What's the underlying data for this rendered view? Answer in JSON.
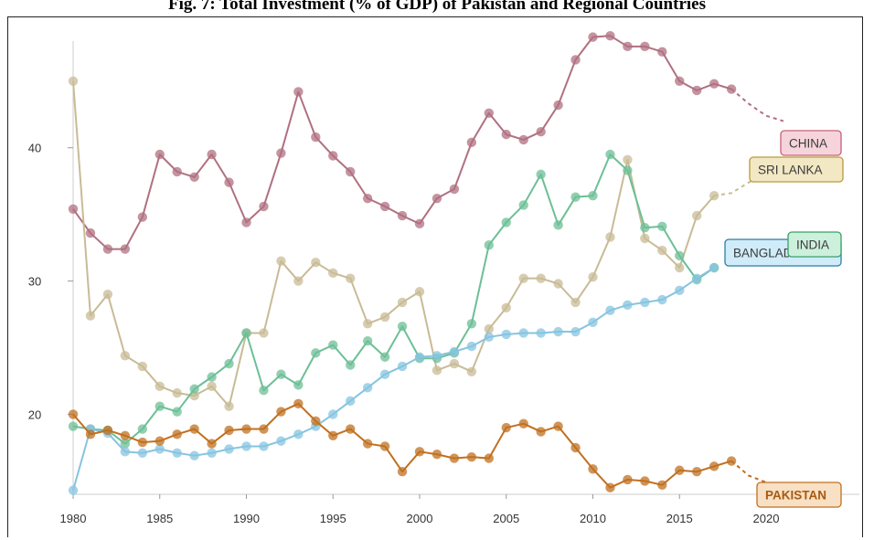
{
  "figure": {
    "title": "Fig. 7: Total Investment (% of GDP) of Pakistan and Regional Countries"
  },
  "chart_data": {
    "type": "line",
    "title": "Fig. 7: Total Investment (% of GDP) of Pakistan and Regional Countries",
    "xlabel": "",
    "ylabel": "",
    "xlim": [
      1980,
      2023
    ],
    "ylim": [
      14,
      48
    ],
    "x_ticks": [
      1980,
      1985,
      1990,
      1995,
      2000,
      2005,
      2010,
      2015,
      2020
    ],
    "y_ticks": [
      20,
      30,
      40
    ],
    "grid": false,
    "x": [
      1980,
      1981,
      1982,
      1983,
      1984,
      1985,
      1986,
      1987,
      1988,
      1989,
      1990,
      1991,
      1992,
      1993,
      1994,
      1995,
      1996,
      1997,
      1998,
      1999,
      2000,
      2001,
      2002,
      2003,
      2004,
      2005,
      2006,
      2007,
      2008,
      2009,
      2010,
      2011,
      2012,
      2013,
      2014,
      2015,
      2016,
      2017,
      2018,
      2019,
      2020,
      2021
    ],
    "series": [
      {
        "name": "CHINA",
        "color": "#b07080",
        "label_bg": "#f6d4dc",
        "label_border": "#c8607a",
        "values": [
          35.4,
          33.6,
          32.4,
          32.4,
          34.8,
          39.5,
          38.2,
          37.8,
          39.5,
          37.4,
          34.4,
          35.6,
          39.6,
          44.2,
          40.8,
          39.4,
          38.2,
          36.2,
          35.6,
          34.9,
          34.3,
          36.2,
          36.9,
          40.4,
          42.6,
          41.0,
          40.6,
          41.2,
          43.2,
          46.6,
          48.3,
          48.4,
          47.6,
          47.6,
          47.2,
          45.0,
          44.3,
          44.8,
          44.4,
          null,
          null,
          null
        ],
        "dashed_tail": [
          [
            2018,
            44.4
          ],
          [
            2019,
            43.3
          ],
          [
            2020,
            42.4
          ],
          [
            2021,
            42.0
          ]
        ],
        "end_label": "CHINA"
      },
      {
        "name": "SRI LANKA",
        "color": "#c8bb96",
        "label_bg": "#f3e8c4",
        "label_border": "#b89a3a",
        "values": [
          45.0,
          27.4,
          29.0,
          24.4,
          23.6,
          22.1,
          21.6,
          21.4,
          22.1,
          20.6,
          26.1,
          26.1,
          31.5,
          30.0,
          31.4,
          30.6,
          30.2,
          26.8,
          27.3,
          28.4,
          29.2,
          23.3,
          23.8,
          23.2,
          26.4,
          28.0,
          30.2,
          30.2,
          29.8,
          28.4,
          30.3,
          33.3,
          39.1,
          33.2,
          32.3,
          31.0,
          34.9,
          36.4,
          null,
          null,
          null,
          null
        ],
        "dashed_tail": [
          [
            2017,
            36.4
          ],
          [
            2018,
            36.6
          ],
          [
            2019,
            37.4
          ],
          [
            2020,
            38.0
          ]
        ],
        "end_label": "SRI LANKA"
      },
      {
        "name": "INDIA",
        "color": "#6cbf96",
        "label_bg": "#cdf0dc",
        "label_border": "#3aa06a",
        "values": [
          19.1,
          18.9,
          18.8,
          17.8,
          18.9,
          20.6,
          20.2,
          21.9,
          22.8,
          23.8,
          26.1,
          21.8,
          23.0,
          22.2,
          24.6,
          25.2,
          23.7,
          25.5,
          24.3,
          26.6,
          24.2,
          24.2,
          24.6,
          26.8,
          32.7,
          34.4,
          35.7,
          38.0,
          34.2,
          36.3,
          36.4,
          39.5,
          38.3,
          34.0,
          34.1,
          31.9,
          30.1,
          31.0,
          null,
          null,
          null,
          null
        ],
        "dashed_tail": [],
        "end_label": "INDIA"
      },
      {
        "name": "BANGLADESH",
        "color": "#86c4e0",
        "label_bg": "#d0ecf8",
        "label_border": "#2a7fa8",
        "values": [
          14.3,
          18.9,
          18.6,
          17.2,
          17.1,
          17.4,
          17.1,
          16.9,
          17.1,
          17.4,
          17.6,
          17.6,
          18.0,
          18.5,
          19.1,
          20.0,
          21.0,
          22.0,
          23.0,
          23.6,
          24.3,
          24.4,
          24.7,
          25.1,
          25.8,
          26.0,
          26.1,
          26.1,
          26.2,
          26.2,
          26.9,
          27.8,
          28.2,
          28.4,
          28.6,
          29.3,
          30.2,
          31.0,
          null,
          null,
          null,
          null
        ],
        "dashed_tail": [],
        "end_label": "BANGLADESH"
      },
      {
        "name": "PAKISTAN",
        "color": "#c07020",
        "label_bg": "#f8e0c4",
        "label_border": "#c07020",
        "values": [
          20.0,
          18.5,
          18.8,
          18.4,
          17.9,
          18.0,
          18.5,
          18.9,
          17.8,
          18.8,
          18.9,
          18.9,
          20.2,
          20.8,
          19.5,
          18.4,
          18.9,
          17.8,
          17.6,
          15.7,
          17.2,
          17.0,
          16.7,
          16.8,
          16.7,
          19.0,
          19.3,
          18.7,
          19.1,
          17.5,
          15.9,
          14.5,
          15.1,
          15.0,
          14.7,
          15.8,
          15.7,
          16.1,
          16.5,
          null,
          null,
          null
        ],
        "dashed_tail": [
          [
            2018,
            16.5
          ],
          [
            2019,
            15.4
          ],
          [
            2020,
            14.9
          ],
          [
            2021,
            14.6
          ]
        ],
        "end_label": "PAKISTAN"
      }
    ]
  }
}
